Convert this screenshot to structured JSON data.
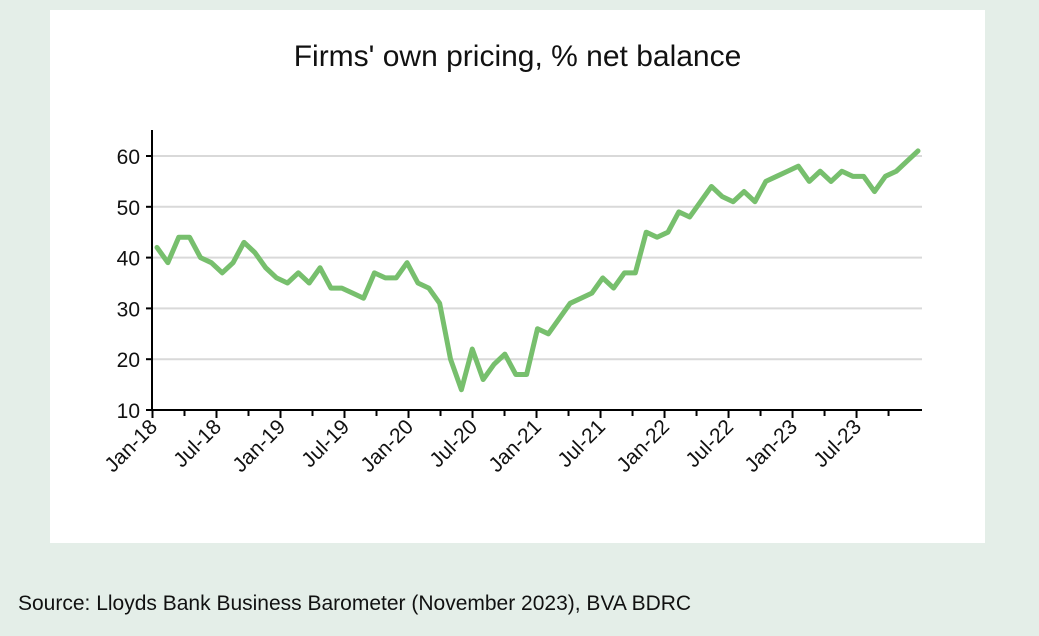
{
  "chart_data": {
    "type": "line",
    "title": "Firms' own pricing, % net balance",
    "source": "Source: Lloyds Bank Business Barometer (November 2023), BVA BDRC",
    "xlabel": "",
    "ylabel": "",
    "ylim": [
      10,
      60
    ],
    "y_ticks": [
      "10",
      "20",
      "30",
      "40",
      "50",
      "60"
    ],
    "x_tick_labels": [
      "Jan-18",
      "Jul-18",
      "Jan-19",
      "Jul-19",
      "Jan-20",
      "Jul-20",
      "Jan-21",
      "Jul-21",
      "Jan-22",
      "Jul-22",
      "Jan-23",
      "Jul-23"
    ],
    "grid": "horizontal",
    "line_color": "#77bf6d",
    "x": [
      "Jan-18",
      "Feb-18",
      "Mar-18",
      "Apr-18",
      "May-18",
      "Jun-18",
      "Jul-18",
      "Aug-18",
      "Sep-18",
      "Oct-18",
      "Nov-18",
      "Dec-18",
      "Jan-19",
      "Feb-19",
      "Mar-19",
      "Apr-19",
      "May-19",
      "Jun-19",
      "Jul-19",
      "Aug-19",
      "Sep-19",
      "Oct-19",
      "Nov-19",
      "Dec-19",
      "Jan-20",
      "Feb-20",
      "Mar-20",
      "Apr-20",
      "May-20",
      "Jun-20",
      "Jul-20",
      "Aug-20",
      "Sep-20",
      "Oct-20",
      "Nov-20",
      "Dec-20",
      "Jan-21",
      "Feb-21",
      "Mar-21",
      "Apr-21",
      "May-21",
      "Jun-21",
      "Jul-21",
      "Aug-21",
      "Sep-21",
      "Oct-21",
      "Nov-21",
      "Dec-21",
      "Jan-22",
      "Feb-22",
      "Mar-22",
      "Apr-22",
      "May-22",
      "Jun-22",
      "Jul-22",
      "Aug-22",
      "Sep-22",
      "Oct-22",
      "Nov-22",
      "Dec-22",
      "Jan-23",
      "Feb-23",
      "Mar-23",
      "Apr-23",
      "May-23",
      "Jun-23",
      "Jul-23",
      "Aug-23",
      "Sep-23",
      "Oct-23",
      "Nov-23"
    ],
    "series": [
      {
        "values": [
          42,
          39,
          44,
          44,
          40,
          39,
          37,
          39,
          43,
          41,
          38,
          36,
          35,
          37,
          35,
          38,
          34,
          34,
          33,
          32,
          37,
          36,
          36,
          39,
          35,
          34,
          31,
          20,
          14,
          22,
          16,
          19,
          21,
          17,
          17,
          26,
          25,
          28,
          31,
          32,
          33,
          36,
          34,
          37,
          37,
          45,
          44,
          45,
          49,
          48,
          51,
          54,
          52,
          51,
          53,
          51,
          55,
          56,
          57,
          58,
          55,
          57,
          55,
          57,
          56,
          56,
          53,
          56,
          57,
          59,
          61
        ]
      }
    ]
  }
}
